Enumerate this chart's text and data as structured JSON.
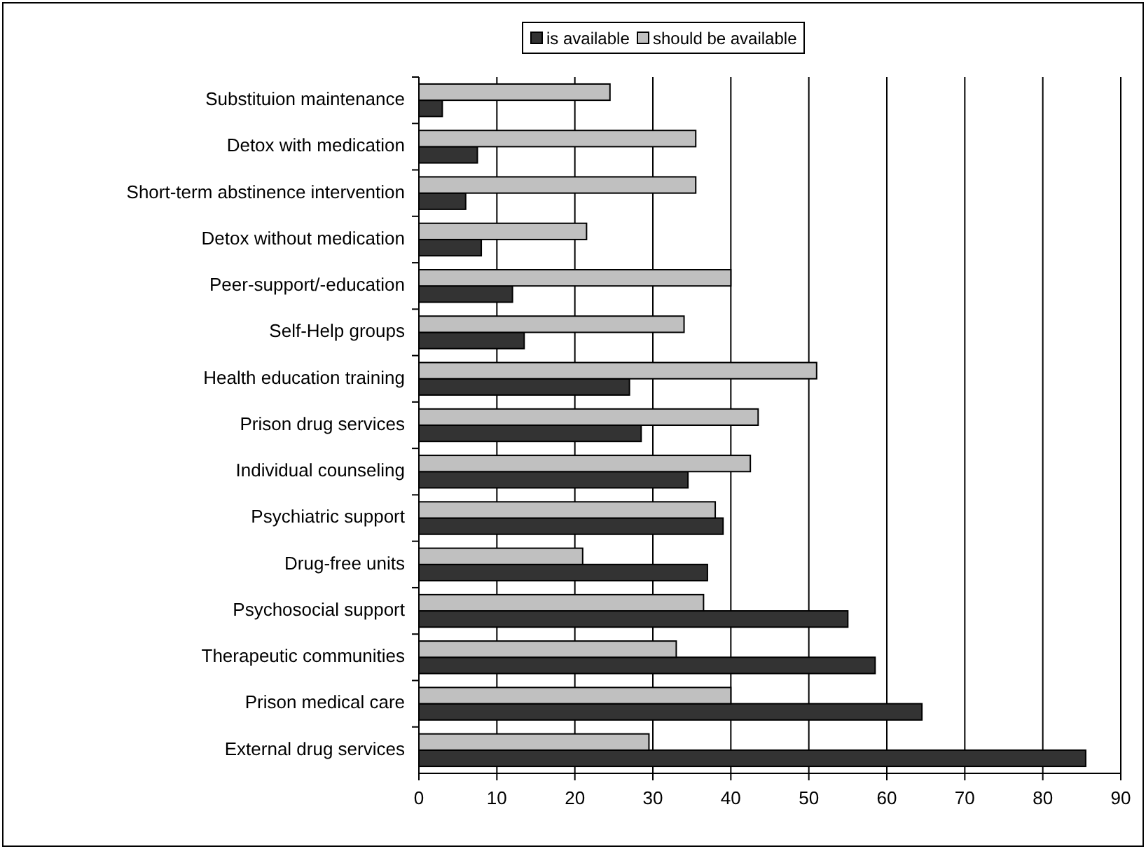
{
  "chart_data": {
    "type": "bar",
    "orientation": "horizontal",
    "categories": [
      "Substituion maintenance",
      "Detox with medication",
      "Short-term abstinence intervention",
      "Detox without medication",
      "Peer-support/-education",
      "Self-Help groups",
      "Health education training",
      "Prison drug services",
      "Individual counseling",
      "Psychiatric support",
      "Drug-free units",
      "Psychosocial support",
      "Therapeutic communities",
      "Prison medical care",
      "External drug services"
    ],
    "series": [
      {
        "name": "is available",
        "color": "#333333",
        "values": [
          3,
          7.5,
          6,
          8,
          12,
          13.5,
          27,
          28.5,
          34.5,
          39,
          37,
          55,
          58.5,
          64.5,
          85.5
        ]
      },
      {
        "name": "should be available",
        "color": "#c0c0c0",
        "values": [
          24.5,
          35.5,
          35.5,
          21.5,
          40,
          34,
          51,
          43.5,
          42.5,
          38,
          21,
          36.5,
          33,
          40,
          29.5
        ]
      }
    ],
    "xlim": [
      0,
      90
    ],
    "xticks": [
      0,
      10,
      20,
      30,
      40,
      50,
      60,
      70,
      80,
      90
    ],
    "grid": "x",
    "legend": "top"
  }
}
